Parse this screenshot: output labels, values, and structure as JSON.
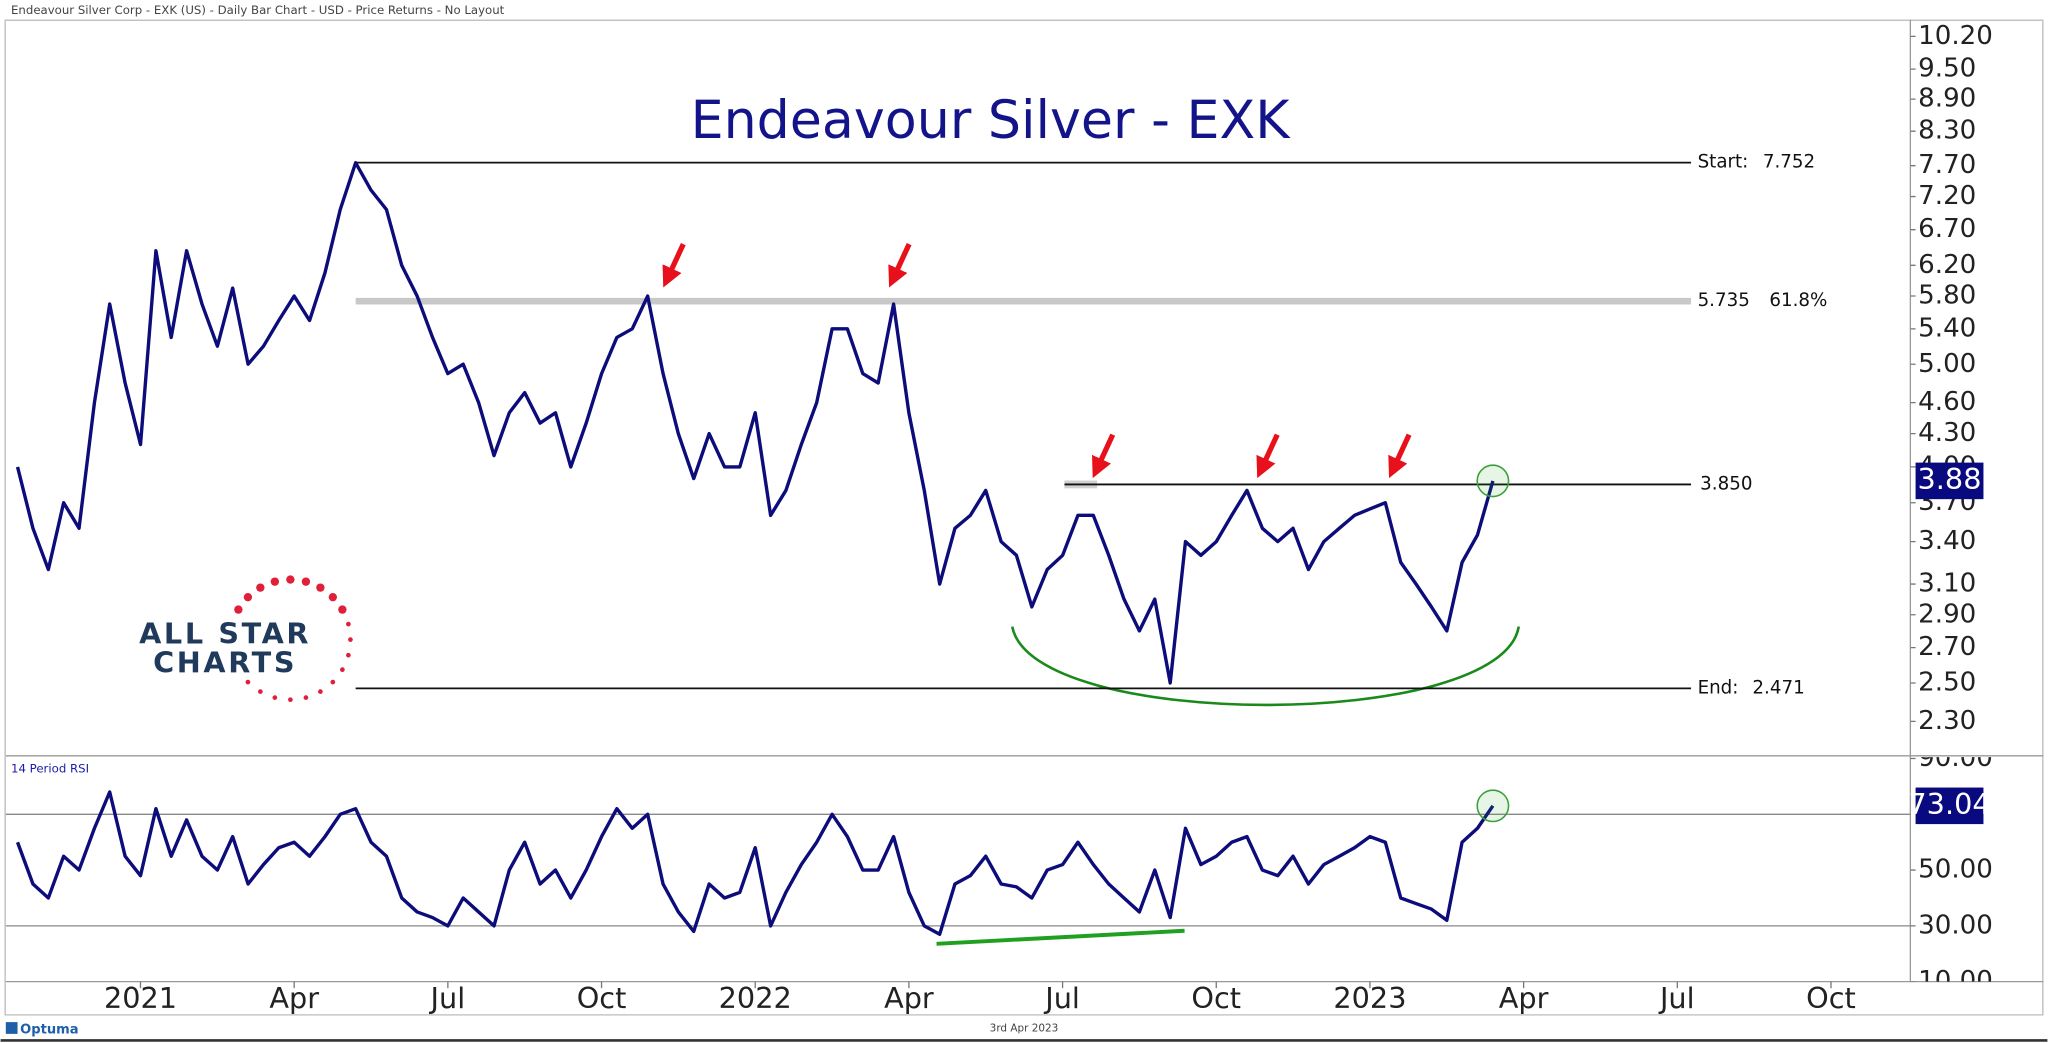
{
  "header": "Endeavour Silver Corp - EXK (US) - Daily Bar Chart - USD - Price Returns - No Layout",
  "footer_date": "3rd Apr 2023",
  "brand": "Optuma",
  "logo": [
    "ALL STAR",
    "CHARTS"
  ],
  "chart_data": [
    {
      "type": "line",
      "title": "Endeavour Silver - EXK",
      "log_scale": true,
      "xlim": [
        2020.783,
        2023.877
      ],
      "xticks": [
        {
          "value": 2021.0,
          "label": "2021"
        },
        {
          "value": 2021.25,
          "label": "Apr"
        },
        {
          "value": 2021.5,
          "label": "Jul"
        },
        {
          "value": 2021.75,
          "label": "Oct"
        },
        {
          "value": 2022.0,
          "label": "2022"
        },
        {
          "value": 2022.25,
          "label": "Apr"
        },
        {
          "value": 2022.5,
          "label": "Jul"
        },
        {
          "value": 2022.75,
          "label": "Oct"
        },
        {
          "value": 2023.0,
          "label": "2023"
        },
        {
          "value": 2023.25,
          "label": "Apr"
        },
        {
          "value": 2023.5,
          "label": "Jul"
        },
        {
          "value": 2023.75,
          "label": "Oct"
        }
      ],
      "ylim": [
        2.14,
        10.58
      ],
      "yticks": [
        {
          "value": 10.2,
          "label": "10.20"
        },
        {
          "value": 9.5,
          "label": "9.50"
        },
        {
          "value": 8.9,
          "label": "8.90"
        },
        {
          "value": 8.3,
          "label": "8.30"
        },
        {
          "value": 7.7,
          "label": "7.70"
        },
        {
          "value": 7.2,
          "label": "7.20"
        },
        {
          "value": 6.7,
          "label": "6.70"
        },
        {
          "value": 6.2,
          "label": "6.20"
        },
        {
          "value": 5.8,
          "label": "5.80"
        },
        {
          "value": 5.4,
          "label": "5.40"
        },
        {
          "value": 5.0,
          "label": "5.00"
        },
        {
          "value": 4.6,
          "label": "4.60"
        },
        {
          "value": 4.3,
          "label": "4.30"
        },
        {
          "value": 4.0,
          "label": "4.00"
        },
        {
          "value": 3.7,
          "label": "3.70"
        },
        {
          "value": 3.4,
          "label": "3.40"
        },
        {
          "value": 3.1,
          "label": "3.10"
        },
        {
          "value": 2.9,
          "label": "2.90"
        },
        {
          "value": 2.7,
          "label": "2.70"
        },
        {
          "value": 2.5,
          "label": "2.50"
        },
        {
          "value": 2.3,
          "label": "2.30"
        }
      ],
      "x": [
        2020.8,
        2020.825,
        2020.85,
        2020.875,
        2020.9,
        2020.925,
        2020.95,
        2020.975,
        2021.0,
        2021.025,
        2021.05,
        2021.075,
        2021.1,
        2021.125,
        2021.15,
        2021.175,
        2021.2,
        2021.225,
        2021.25,
        2021.275,
        2021.3,
        2021.325,
        2021.35,
        2021.375,
        2021.4,
        2021.425,
        2021.45,
        2021.475,
        2021.5,
        2021.525,
        2021.55,
        2021.575,
        2021.6,
        2021.625,
        2021.65,
        2021.675,
        2021.7,
        2021.725,
        2021.75,
        2021.775,
        2021.8,
        2021.825,
        2021.85,
        2021.875,
        2021.9,
        2021.925,
        2021.95,
        2021.975,
        2022.0,
        2022.025,
        2022.05,
        2022.075,
        2022.1,
        2022.125,
        2022.15,
        2022.175,
        2022.2,
        2022.225,
        2022.25,
        2022.275,
        2022.3,
        2022.325,
        2022.35,
        2022.375,
        2022.4,
        2022.425,
        2022.45,
        2022.475,
        2022.5,
        2022.525,
        2022.55,
        2022.575,
        2022.6,
        2022.625,
        2022.65,
        2022.675,
        2022.7,
        2022.725,
        2022.75,
        2022.775,
        2022.8,
        2022.825,
        2022.85,
        2022.875,
        2022.9,
        2022.925,
        2022.95,
        2022.975,
        2023.0,
        2023.025,
        2023.05,
        2023.075,
        2023.1,
        2023.125,
        2023.15,
        2023.175,
        2023.2
      ],
      "series": [
        {
          "name": "EXK",
          "color": "#0c0c7a",
          "values": [
            4.0,
            3.5,
            3.2,
            3.7,
            3.5,
            4.6,
            5.7,
            4.8,
            4.2,
            6.4,
            5.3,
            6.4,
            5.7,
            5.2,
            5.9,
            5.0,
            5.2,
            5.5,
            5.8,
            5.5,
            6.1,
            7.0,
            7.75,
            7.3,
            7.0,
            6.2,
            5.8,
            5.3,
            4.9,
            5.0,
            4.6,
            4.1,
            4.5,
            4.7,
            4.4,
            4.5,
            4.0,
            4.4,
            4.9,
            5.3,
            5.4,
            5.8,
            4.9,
            4.3,
            3.9,
            4.3,
            4.0,
            4.0,
            4.5,
            3.6,
            3.8,
            4.2,
            4.6,
            5.4,
            5.4,
            4.9,
            4.8,
            5.7,
            4.5,
            3.8,
            3.1,
            3.5,
            3.6,
            3.8,
            3.4,
            3.3,
            2.95,
            3.2,
            3.3,
            3.6,
            3.6,
            3.3,
            3.0,
            2.8,
            3.0,
            2.5,
            3.4,
            3.3,
            3.4,
            3.6,
            3.8,
            3.5,
            3.4,
            3.5,
            3.2,
            3.4,
            3.5,
            3.6,
            3.65,
            3.7,
            3.25,
            3.1,
            2.95,
            2.8,
            3.25,
            3.45,
            3.88
          ]
        }
      ],
      "levels": [
        {
          "label": "Start:",
          "value": 7.752
        },
        {
          "value": 5.735,
          "ratio": "61.8%",
          "band": true
        },
        {
          "value": 3.85,
          "value_label": "3.850"
        },
        {
          "label": "End:",
          "value": 2.471
        }
      ]
    },
    {
      "type": "line",
      "title": "14 Period RSI",
      "ylim": [
        10,
        90.5
      ],
      "yticks": [
        {
          "value": 90,
          "label": "90.00"
        },
        {
          "value": 50,
          "label": "50.00"
        },
        {
          "value": 30,
          "label": "30.00"
        },
        {
          "value": 10,
          "label": "10.00"
        }
      ],
      "hlines": [
        30,
        70
      ],
      "series": [
        {
          "name": "RSI",
          "color": "#0c0c7a",
          "values": [
            60,
            45,
            40,
            55,
            50,
            65,
            78,
            55,
            48,
            72,
            55,
            68,
            55,
            50,
            62,
            45,
            52,
            58,
            60,
            55,
            62,
            70,
            72,
            60,
            55,
            40,
            35,
            33,
            30,
            40,
            35,
            30,
            50,
            60,
            45,
            50,
            40,
            50,
            62,
            72,
            65,
            70,
            45,
            35,
            28,
            45,
            40,
            42,
            58,
            30,
            42,
            52,
            60,
            70,
            62,
            50,
            50,
            62,
            42,
            30,
            27,
            45,
            48,
            55,
            45,
            44,
            40,
            50,
            52,
            60,
            52,
            45,
            40,
            35,
            50,
            33,
            65,
            52,
            55,
            60,
            62,
            50,
            48,
            55,
            45,
            52,
            55,
            58,
            62,
            60,
            40,
            38,
            36,
            32,
            60,
            65,
            73.04
          ]
        }
      ]
    }
  ]
}
